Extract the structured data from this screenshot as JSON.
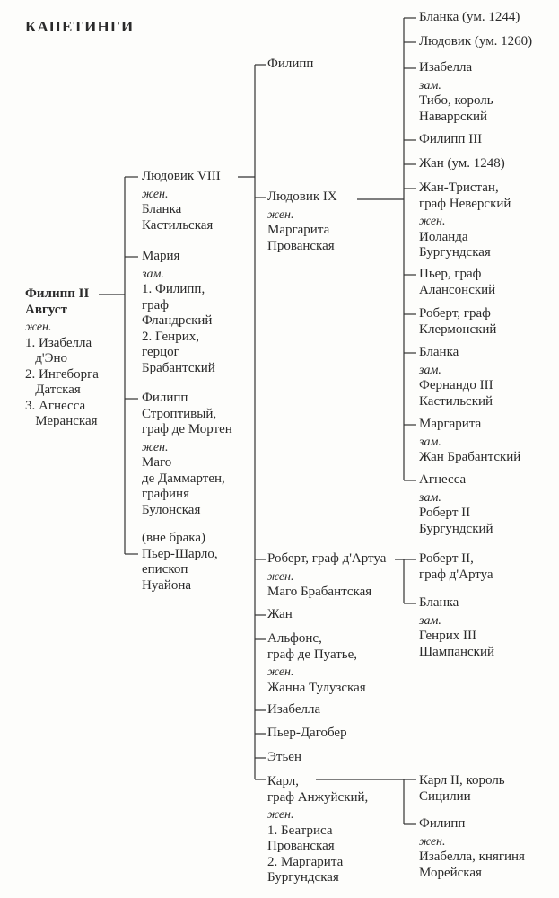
{
  "title": "КАПЕТИНГИ",
  "root": {
    "name": [
      "Филипп II",
      "Август"
    ],
    "label": "жен.",
    "spouse": [
      "1. Изабелла",
      "   д'Эно",
      "2. Ингеборга",
      "   Датская",
      "3. Агнесса",
      "   Меранская"
    ]
  },
  "gen1": [
    {
      "name": [
        "Людовик VIII"
      ],
      "label": "жен.",
      "spouse": [
        "Бланка",
        "Кастильская"
      ]
    },
    {
      "name": [
        "Мария"
      ],
      "label": "зам.",
      "spouse": [
        "1. Филипп,",
        "граф",
        "Фландрский",
        "2. Генрих,",
        "герцог",
        "Брабантский"
      ]
    },
    {
      "name": [
        "Филипп",
        "Строптивый,",
        "граф де Мортен"
      ],
      "label": "жен.",
      "spouse": [
        "Маго",
        "де Даммартен,",
        "графиня",
        "Булонская"
      ]
    },
    {
      "note": "(вне брака)",
      "name": [
        "Пьер-Шарло,",
        "епископ",
        "Нуайона"
      ]
    }
  ],
  "gen2": [
    {
      "name": [
        "Филипп"
      ]
    },
    {
      "name": [
        "Людовик IX"
      ],
      "label": "жен.",
      "spouse": [
        "Маргарита",
        "Прованская"
      ]
    },
    {
      "name": [
        "Роберт, граф д'Артуа"
      ],
      "label": "жен.",
      "spouse": [
        "Маго Брабантская"
      ]
    },
    {
      "name": [
        "Жан"
      ]
    },
    {
      "name": [
        "Альфонс,",
        "граф де Пуатье,"
      ],
      "label": "жен.",
      "spouse": [
        "Жанна Тулузская"
      ]
    },
    {
      "name": [
        "Изабелла"
      ]
    },
    {
      "name": [
        "Пьер-Дагобер"
      ]
    },
    {
      "name": [
        "Этьен"
      ]
    },
    {
      "name": [
        "Карл,",
        "граф Анжуйский,"
      ],
      "label": "жен.",
      "spouse": [
        "1. Беатриса",
        "Прованская",
        "2. Маргарита",
        "Бургундская"
      ]
    }
  ],
  "gen3_louis": [
    {
      "name": [
        "Бланка (ум. 1244)"
      ]
    },
    {
      "name": [
        "Людовик (ум. 1260)"
      ]
    },
    {
      "name": [
        "Изабелла"
      ],
      "label": "зам.",
      "spouse": [
        "Тибо, король",
        "Наваррский"
      ]
    },
    {
      "name": [
        "Филипп III"
      ]
    },
    {
      "name": [
        "Жан (ум. 1248)"
      ]
    },
    {
      "name": [
        "Жан-Тристан,",
        "граф Неверский"
      ],
      "label": "жен.",
      "spouse": [
        "Иоланда",
        "Бургундская"
      ]
    },
    {
      "name": [
        "Пьер, граф",
        "Алансонский"
      ]
    },
    {
      "name": [
        "Роберт, граф",
        "Клермонский"
      ]
    },
    {
      "name": [
        "Бланка"
      ],
      "label": "зам.",
      "spouse": [
        "Фернандо III",
        "Кастильский"
      ]
    },
    {
      "name": [
        "Маргарита"
      ],
      "label": "зам.",
      "spouse": [
        "Жан Брабантский"
      ]
    },
    {
      "name": [
        "Агнесса"
      ],
      "label": "зам.",
      "spouse": [
        "Роберт II",
        "Бургундский"
      ]
    }
  ],
  "gen3_robert": [
    {
      "name": [
        "Роберт II,",
        "граф д'Артуа"
      ]
    },
    {
      "name": [
        "Бланка"
      ],
      "label": "зам.",
      "spouse": [
        "Генрих III",
        "Шампанский"
      ]
    }
  ],
  "gen3_charles": [
    {
      "name": [
        "Карл II, король",
        "Сицилии"
      ]
    },
    {
      "name": [
        "Филипп"
      ],
      "label": "жен.",
      "spouse": [
        "Изабелла, княгиня",
        "Морейская"
      ]
    }
  ]
}
